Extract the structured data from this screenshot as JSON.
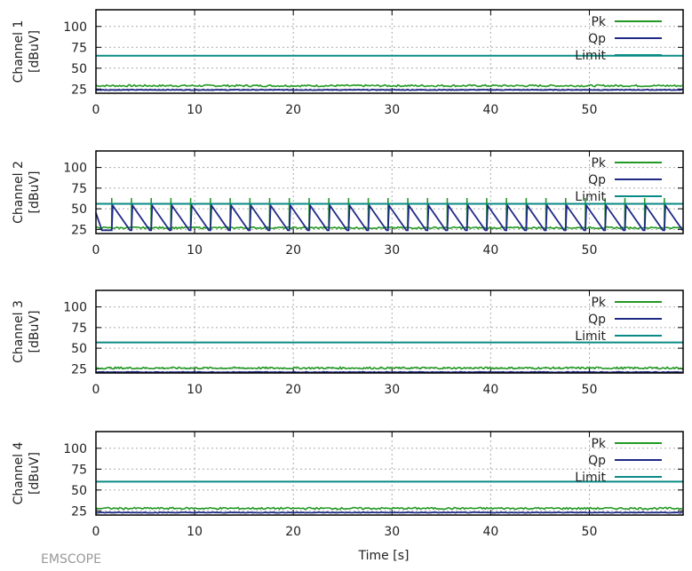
{
  "watermark": "EMSCOPE",
  "xlabel": "Time [s]",
  "colors": {
    "Pk": "#229922",
    "Qp": "#1f2a85",
    "Limit": "#0a8a84",
    "grid": "#aaaaaa"
  },
  "chart_data": [
    {
      "type": "line",
      "ylabel": [
        "Channel 1",
        "[dBuV]"
      ],
      "xlim": [
        0,
        59.5
      ],
      "ylim": [
        20,
        120
      ],
      "xticks": [
        0,
        10,
        20,
        30,
        40,
        50
      ],
      "yticks": [
        25,
        50,
        75,
        100
      ],
      "grid": true,
      "legend": "top-right",
      "series": [
        {
          "name": "Pk",
          "baseline": 29
        },
        {
          "name": "Qp",
          "baseline": 24
        },
        {
          "name": "Limit",
          "value": 65
        }
      ]
    },
    {
      "type": "line",
      "ylabel": [
        "Channel 2",
        "[dBuV]"
      ],
      "xlim": [
        0,
        59.5
      ],
      "ylim": [
        20,
        120
      ],
      "xticks": [
        0,
        10,
        20,
        30,
        40,
        50
      ],
      "yticks": [
        25,
        50,
        75,
        100
      ],
      "grid": true,
      "legend": "top-right",
      "series": [
        {
          "name": "Pk",
          "baseline": 27,
          "pulse_peak": 63
        },
        {
          "name": "Qp",
          "baseline": 24,
          "pulse_peak": 54
        },
        {
          "name": "Limit",
          "value": 56
        }
      ],
      "pulse_times": [
        1.6,
        3.6,
        5.6,
        7.6,
        9.6,
        11.6,
        13.6,
        15.6,
        17.6,
        19.6,
        21.6,
        23.6,
        25.6,
        27.6,
        29.6,
        31.6,
        33.6,
        35.6,
        37.6,
        39.6,
        41.6,
        43.6,
        45.6,
        47.6,
        49.6,
        51.6,
        53.6,
        55.6,
        57.6
      ]
    },
    {
      "type": "line",
      "ylabel": [
        "Channel 3",
        "[dBuV]"
      ],
      "xlim": [
        0,
        59.5
      ],
      "ylim": [
        20,
        120
      ],
      "xticks": [
        0,
        10,
        20,
        30,
        40,
        50
      ],
      "yticks": [
        25,
        50,
        75,
        100
      ],
      "grid": true,
      "legend": "top-right",
      "series": [
        {
          "name": "Pk",
          "baseline": 26
        },
        {
          "name": "Qp",
          "baseline": 21
        },
        {
          "name": "Limit",
          "value": 57
        }
      ]
    },
    {
      "type": "line",
      "ylabel": [
        "Channel 4",
        "[dBuV]"
      ],
      "xlim": [
        0,
        59.5
      ],
      "ylim": [
        20,
        120
      ],
      "xticks": [
        0,
        10,
        20,
        30,
        40,
        50
      ],
      "yticks": [
        25,
        50,
        75,
        100
      ],
      "grid": true,
      "legend": "top-right",
      "series": [
        {
          "name": "Pk",
          "baseline": 28
        },
        {
          "name": "Qp",
          "baseline": 23
        },
        {
          "name": "Limit",
          "value": 60
        }
      ]
    }
  ]
}
